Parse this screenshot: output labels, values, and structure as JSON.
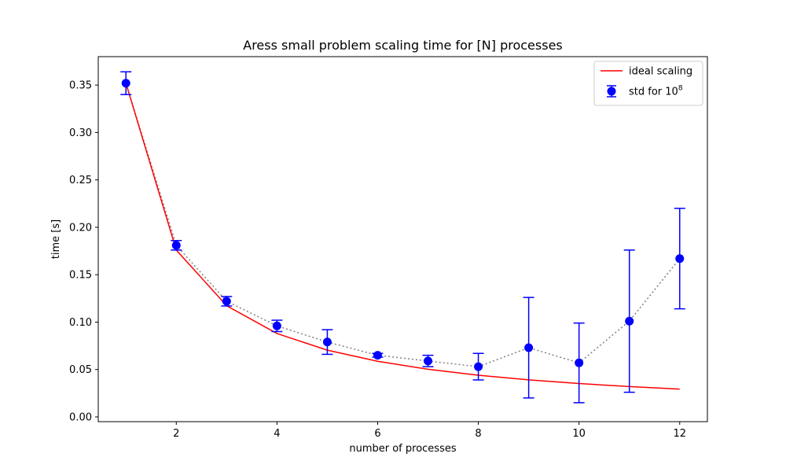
{
  "chart_data": {
    "type": "scatter",
    "title": "Aress small problem scaling time for [N] processes",
    "xlabel": "number of processes",
    "ylabel": "time [s]",
    "xlim": [
      0.45,
      12.55
    ],
    "ylim": [
      -0.005,
      0.38
    ],
    "xticks": [
      "2",
      "4",
      "6",
      "8",
      "10",
      "12"
    ],
    "xtick_values": [
      2,
      4,
      6,
      8,
      10,
      12
    ],
    "yticks": [
      "0.00",
      "0.05",
      "0.10",
      "0.15",
      "0.20",
      "0.25",
      "0.30",
      "0.35"
    ],
    "ytick_values": [
      0.0,
      0.05,
      0.1,
      0.15,
      0.2,
      0.25,
      0.3,
      0.35
    ],
    "grid": false,
    "legend_position": "top-right",
    "legend": {
      "ideal_label": "ideal scaling",
      "std_label_prefix": "std for 10",
      "std_label_exp": "8"
    },
    "series": [
      {
        "name": "ideal scaling",
        "kind": "line",
        "color": "#ff0000",
        "x": [
          1,
          2,
          3,
          4,
          5,
          6,
          7,
          8,
          9,
          10,
          11,
          12
        ],
        "y": [
          0.352,
          0.176,
          0.1173,
          0.088,
          0.0704,
          0.0587,
          0.0503,
          0.044,
          0.0391,
          0.0352,
          0.032,
          0.0293
        ]
      },
      {
        "name": "std for 10^8",
        "kind": "errorbar",
        "color": "#0000ff",
        "connector_color": "#808080",
        "x": [
          1,
          2,
          3,
          4,
          5,
          6,
          7,
          8,
          9,
          10,
          11,
          12
        ],
        "y": [
          0.352,
          0.181,
          0.122,
          0.096,
          0.079,
          0.065,
          0.059,
          0.053,
          0.073,
          0.057,
          0.101,
          0.167
        ],
        "err": [
          0.012,
          0.005,
          0.005,
          0.006,
          0.013,
          0.002,
          0.006,
          0.014,
          0.053,
          0.042,
          0.075,
          0.053
        ]
      }
    ]
  }
}
